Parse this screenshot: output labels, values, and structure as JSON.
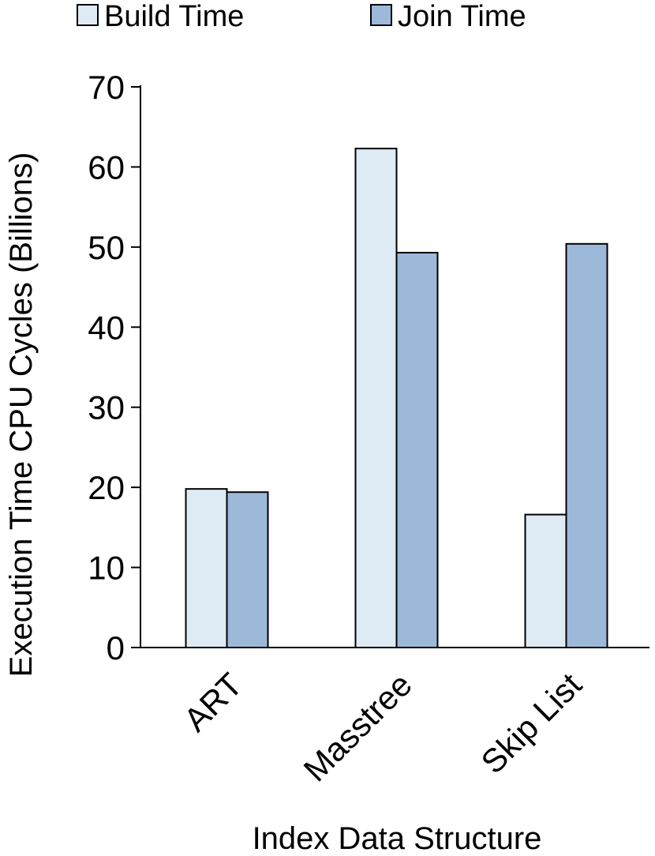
{
  "chart_data": {
    "type": "bar",
    "xlabel": "Index Data Structure",
    "ylabel": "Execution Time CPU Cycles (Billions)",
    "categories": [
      "ART",
      "Masstree",
      "Skip List"
    ],
    "series": [
      {
        "name": "Build Time",
        "values": [
          19.8,
          62.3,
          16.6
        ],
        "color": "#deeaf4"
      },
      {
        "name": "Join Time",
        "values": [
          19.4,
          49.3,
          50.4
        ],
        "color": "#9db9da"
      }
    ],
    "ylim": [
      0,
      70
    ],
    "yticks": [
      0,
      10,
      20,
      30,
      40,
      50,
      60,
      70
    ],
    "grid": false,
    "legend_position": "top"
  }
}
